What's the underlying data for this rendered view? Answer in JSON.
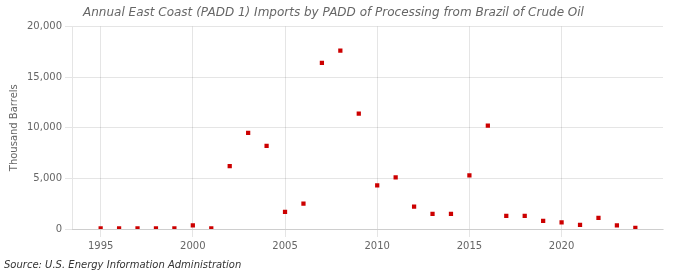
{
  "chart_data": {
    "type": "scatter",
    "title": "Annual East Coast (PADD 1) Imports by PADD of Processing from Brazil of Crude Oil",
    "ylabel": "Thousand Barrels",
    "source": "Source: U.S. Energy Information Administration",
    "color": "#cc0000",
    "marker": "square",
    "grid": true,
    "xlim": [
      1993.5,
      2025.5
    ],
    "xticks": [
      1995,
      2000,
      2005,
      2010,
      2015,
      2020
    ],
    "ylim": [
      0,
      20000
    ],
    "yticks": [
      0,
      {
        "value": 5000,
        "label": "5,000"
      },
      {
        "value": 10000,
        "label": "10,000"
      },
      {
        "value": 15000,
        "label": "15,000"
      },
      {
        "value": 20000,
        "label": "20,000"
      }
    ],
    "x": [
      1995,
      1996,
      1997,
      1998,
      1999,
      2000,
      2001,
      2002,
      2003,
      2004,
      2005,
      2006,
      2007,
      2008,
      2009,
      2010,
      2011,
      2012,
      2013,
      2014,
      2015,
      2016,
      2017,
      2018,
      2019,
      2020,
      2021,
      2022,
      2023,
      2024
    ],
    "values": [
      50,
      60,
      70,
      50,
      60,
      350,
      50,
      6200,
      9500,
      8200,
      1700,
      2500,
      16400,
      17600,
      11400,
      4300,
      5100,
      2200,
      1500,
      1500,
      5300,
      10200,
      1300,
      1300,
      800,
      650,
      400,
      1100,
      350,
      100
    ]
  }
}
